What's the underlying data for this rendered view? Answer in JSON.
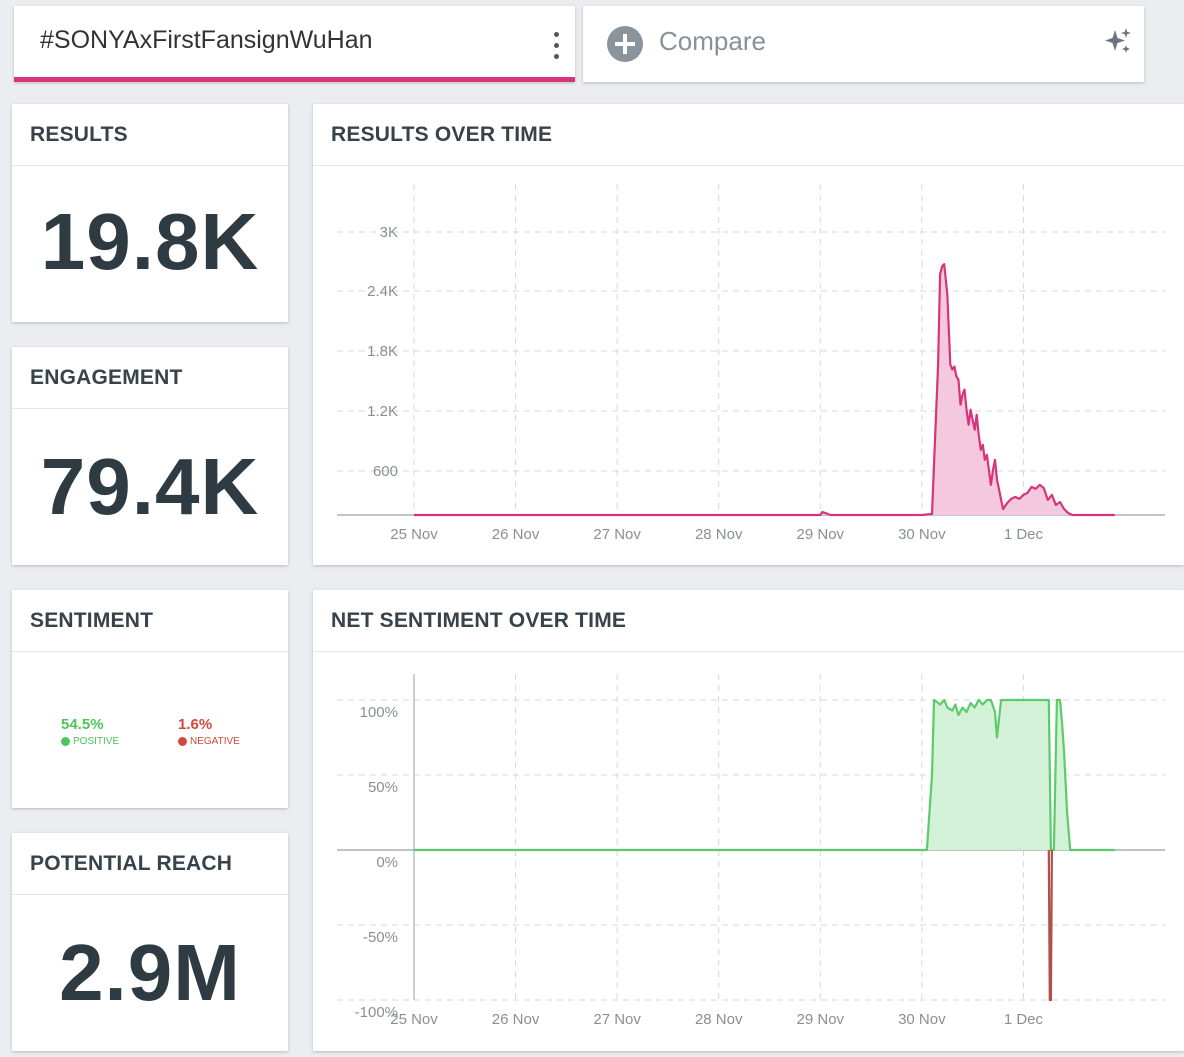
{
  "query": {
    "title": "#SONYAxFirstFansignWuHan",
    "accent": "#d6347b"
  },
  "compare": {
    "label": "Compare",
    "icon": "plus-circle-icon",
    "action_icon": "sparkle-icon"
  },
  "results": {
    "title": "RESULTS",
    "value": "19.8K"
  },
  "engagement": {
    "title": "ENGAGEMENT",
    "value": "79.4K"
  },
  "sentiment": {
    "title": "SENTIMENT",
    "positive": {
      "value": "54.5%",
      "label": "POSITIVE",
      "color": "#4cc55c"
    },
    "negative": {
      "value": "1.6%",
      "label": "NEGATIVE",
      "color": "#d0493a"
    }
  },
  "reach": {
    "title": "POTENTIAL REACH",
    "value": "2.9M"
  },
  "results_chart": {
    "title": "RESULTS OVER TIME",
    "chart_data": {
      "type": "area",
      "title": "RESULTS OVER TIME",
      "color": "#d6347b",
      "fill": "#f4c9dd",
      "x_ticks": [
        "25 Nov",
        "26 Nov",
        "27 Nov",
        "28 Nov",
        "29 Nov",
        "30 Nov",
        "1 Dec"
      ],
      "y_ticks": [
        "600",
        "1.2K",
        "1.8K",
        "2.4K",
        "3K"
      ],
      "ylim": [
        0,
        3000
      ],
      "xlim": [
        0,
        7
      ],
      "grid": true,
      "x": [
        0,
        4.0,
        4.02,
        4.05,
        4.1,
        5.0,
        5.1,
        5.12,
        5.16,
        5.18,
        5.2,
        5.22,
        5.25,
        5.28,
        5.3,
        5.32,
        5.34,
        5.36,
        5.38,
        5.4,
        5.42,
        5.44,
        5.46,
        5.48,
        5.5,
        5.52,
        5.54,
        5.56,
        5.58,
        5.6,
        5.62,
        5.64,
        5.66,
        5.68,
        5.7,
        5.72,
        5.74,
        5.76,
        5.78,
        5.8,
        5.84,
        5.88,
        5.92,
        5.96,
        6.0,
        6.04,
        6.08,
        6.12,
        6.16,
        6.2,
        6.24,
        6.28,
        6.32,
        6.36,
        6.4,
        6.44,
        6.48,
        6.9
      ],
      "y": [
        0,
        0,
        30,
        20,
        0,
        0,
        10,
        500,
        1500,
        2400,
        2480,
        2500,
        2200,
        1500,
        1450,
        1480,
        1380,
        1350,
        1100,
        1200,
        1250,
        1050,
        900,
        1050,
        950,
        850,
        1000,
        800,
        650,
        700,
        550,
        600,
        450,
        300,
        450,
        550,
        350,
        250,
        150,
        60,
        120,
        160,
        180,
        160,
        200,
        220,
        280,
        260,
        300,
        270,
        150,
        200,
        100,
        130,
        60,
        20,
        0,
        0
      ]
    }
  },
  "sentiment_chart": {
    "title": "NET SENTIMENT OVER TIME",
    "chart_data": {
      "type": "area",
      "title": "NET SENTIMENT OVER TIME",
      "x_ticks": [
        "25 Nov",
        "26 Nov",
        "27 Nov",
        "28 Nov",
        "29 Nov",
        "30 Nov",
        "1 Dec"
      ],
      "y_ticks": [
        "100%",
        "50%",
        "0%",
        "-50%",
        "-100%"
      ],
      "ylim": [
        -100,
        100
      ],
      "xlim": [
        0,
        7
      ],
      "grid": true,
      "series": [
        {
          "color": "#5ccb6a",
          "fill": "#d3f1d7",
          "x": [
            0,
            5.05,
            5.1,
            5.12,
            5.18,
            5.22,
            5.25,
            5.3,
            5.33,
            5.36,
            5.4,
            5.44,
            5.48,
            5.52,
            5.56,
            5.6,
            5.64,
            5.68,
            5.72,
            5.74,
            5.76,
            5.78,
            5.8,
            5.82,
            5.86,
            5.9,
            5.95,
            6.0,
            6.05,
            6.1,
            6.15,
            6.2,
            6.22,
            6.24,
            6.25,
            6.27,
            6.3,
            6.33,
            6.36,
            6.38,
            6.4,
            6.43,
            6.46,
            6.9
          ],
          "y": [
            0,
            0,
            50,
            100,
            97,
            100,
            95,
            93,
            97,
            90,
            95,
            92,
            98,
            95,
            100,
            97,
            100,
            100,
            92,
            75,
            88,
            100,
            100,
            100,
            100,
            100,
            100,
            100,
            100,
            100,
            100,
            100,
            100,
            100,
            100,
            0,
            0,
            100,
            100,
            85,
            65,
            25,
            0,
            0
          ]
        },
        {
          "color": "#b05048",
          "x": [
            6.25,
            6.26,
            6.27,
            6.28
          ],
          "y": [
            0,
            -100,
            -100,
            0
          ]
        }
      ]
    }
  }
}
